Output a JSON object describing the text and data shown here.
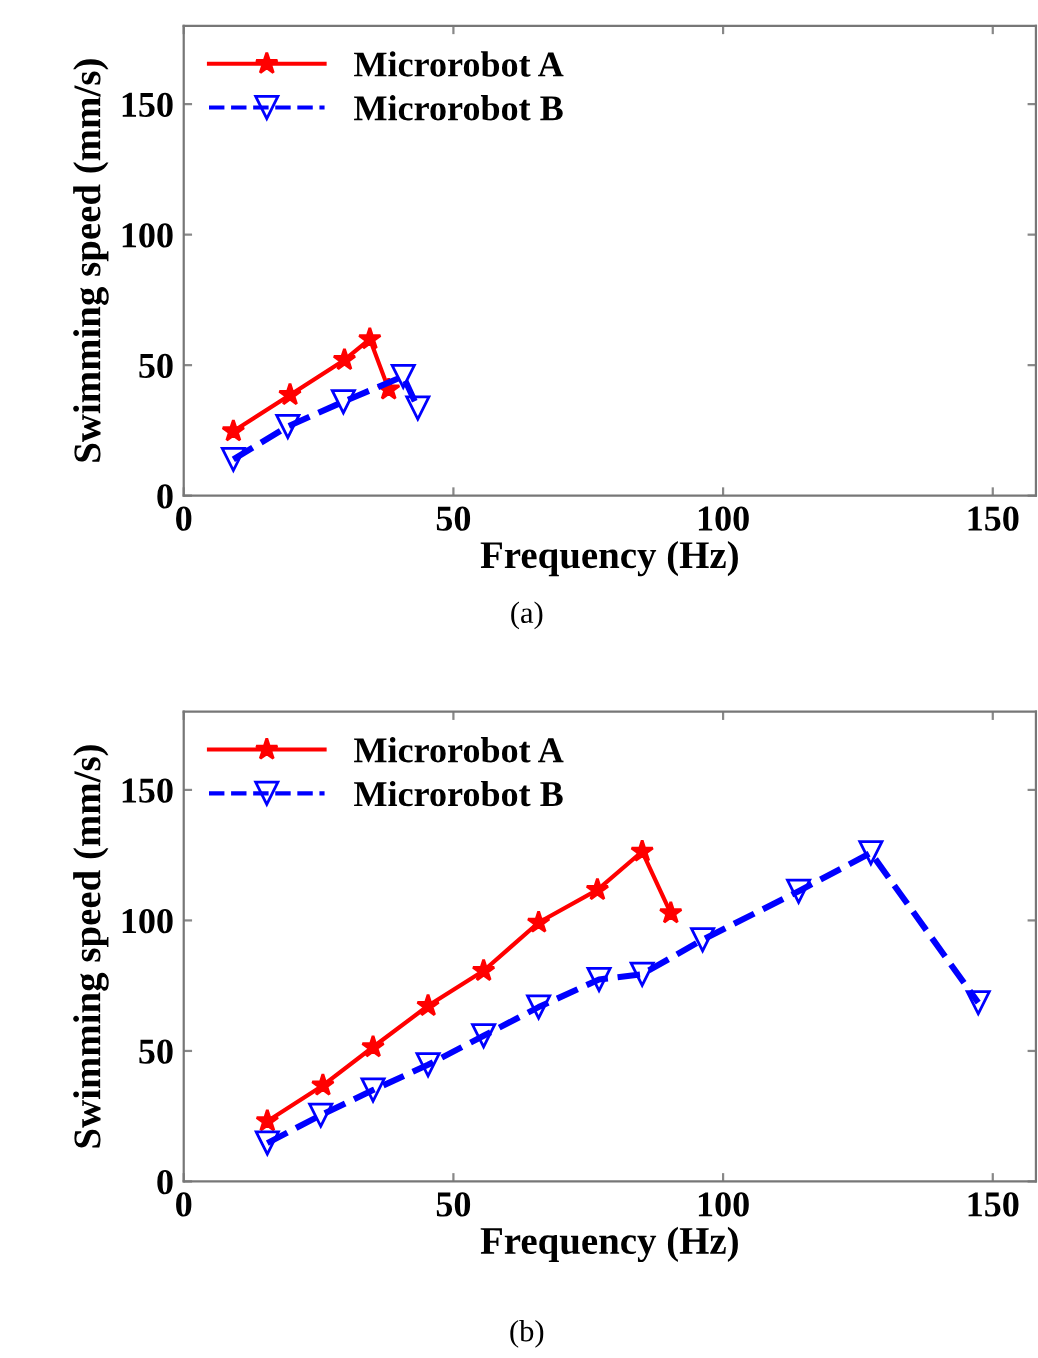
{
  "chart_data": [
    {
      "type": "line",
      "xlabel": "Frequency (Hz)",
      "ylabel": "Swimming speed (mm/s)",
      "xlim": [
        0,
        158
      ],
      "ylim": [
        0,
        180
      ],
      "xticks": [
        0,
        50,
        100,
        150
      ],
      "yticks": [
        0,
        50,
        100,
        150
      ],
      "grid": false,
      "legend": "top left",
      "annotations": [
        "(a)"
      ],
      "series": [
        {
          "name": "Microrobot A",
          "color": "#ff0000",
          "marker": "star",
          "line_style": "solid",
          "x": [
            9.2,
            19.7,
            29.8,
            34.5,
            38
          ],
          "values": [
            24.7,
            38.6,
            52,
            60,
            40.7
          ]
        },
        {
          "name": "Microrobot B",
          "color": "#0000ff",
          "marker": "triangle",
          "line_style": "dashed",
          "x": [
            9.2,
            19.3,
            29.6,
            40.7,
            43.4
          ],
          "values": [
            13.9,
            26.5,
            36,
            45.7,
            33.6
          ]
        }
      ]
    },
    {
      "type": "line",
      "xlabel": "Frequency (Hz)",
      "ylabel": "Swimming speed (mm/s)",
      "xlim": [
        0,
        158
      ],
      "ylim": [
        0,
        180
      ],
      "xticks": [
        0,
        50,
        100,
        150
      ],
      "yticks": [
        0,
        50,
        100,
        150
      ],
      "grid": false,
      "legend": "top left",
      "annotations": [
        "(b)"
      ],
      "series": [
        {
          "name": "Microrobot A",
          "color": "#ff0000",
          "marker": "star",
          "line_style": "solid",
          "x": [
            15.5,
            25.8,
            35.1,
            45.3,
            55.6,
            65.8,
            76.7,
            85,
            90.3
          ],
          "values": [
            23.1,
            36.8,
            51.5,
            67.3,
            80.7,
            99.2,
            111.7,
            126.4,
            102.8
          ]
        },
        {
          "name": "Microrobot B",
          "color": "#0000ff",
          "marker": "triangle",
          "line_style": "dashed",
          "x": [
            15.5,
            25.4,
            35.1,
            45.3,
            55.6,
            65.8,
            77,
            85,
            96.2,
            114,
            127.4,
            147.3
          ],
          "values": [
            14.7,
            25.4,
            35,
            44.7,
            55.8,
            66.8,
            77.4,
            79.4,
            92.6,
            111.2,
            125.9,
            68.5
          ]
        }
      ]
    }
  ]
}
